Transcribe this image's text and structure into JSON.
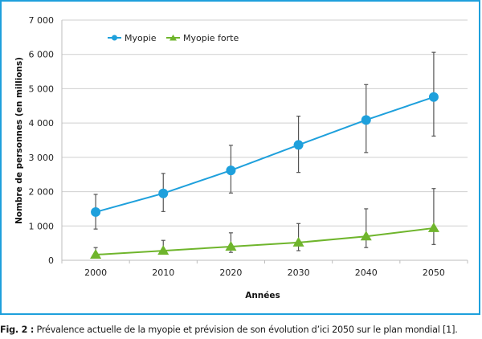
{
  "chart_data": {
    "type": "line",
    "title": "",
    "xlabel": "Années",
    "ylabel": "Nombre de personnes (en millions)",
    "ylim": [
      0,
      7000
    ],
    "yticks": [
      0,
      1000,
      2000,
      3000,
      4000,
      5000,
      6000,
      7000
    ],
    "ytick_labels": [
      "0",
      "1 000",
      "2 000",
      "3 000",
      "4 000",
      "5 000",
      "6 000",
      "7 000"
    ],
    "categories": [
      "2000",
      "2010",
      "2020",
      "2030",
      "2040",
      "2050"
    ],
    "grid": true,
    "legend_position": "top-left",
    "series": [
      {
        "name": "Myopie",
        "color": "#1ea0dc",
        "marker": "circle",
        "values": [
          1406,
          1950,
          2620,
          3361,
          4089,
          4758
        ],
        "error_high": [
          1920,
          2530,
          3350,
          4200,
          5120,
          6060
        ],
        "error_low": [
          910,
          1420,
          1960,
          2560,
          3140,
          3620
        ]
      },
      {
        "name": "Myopie forte",
        "color": "#6fb52c",
        "marker": "triangle",
        "values": [
          163,
          277,
          399,
          517,
          696,
          938
        ],
        "error_high": [
          370,
          580,
          800,
          1070,
          1500,
          2090
        ],
        "error_low": [
          90,
          200,
          230,
          280,
          370,
          460
        ]
      }
    ]
  },
  "caption": {
    "label": "Fig. 2 :",
    "text": " Prévalence actuelle de la myopie et prévision de son évolution d’ici 2050 sur le plan mondial [1]."
  },
  "colors": {
    "frame": "#1ea0dc",
    "grid": "#cfcfcf",
    "error_bar": "#555555"
  }
}
